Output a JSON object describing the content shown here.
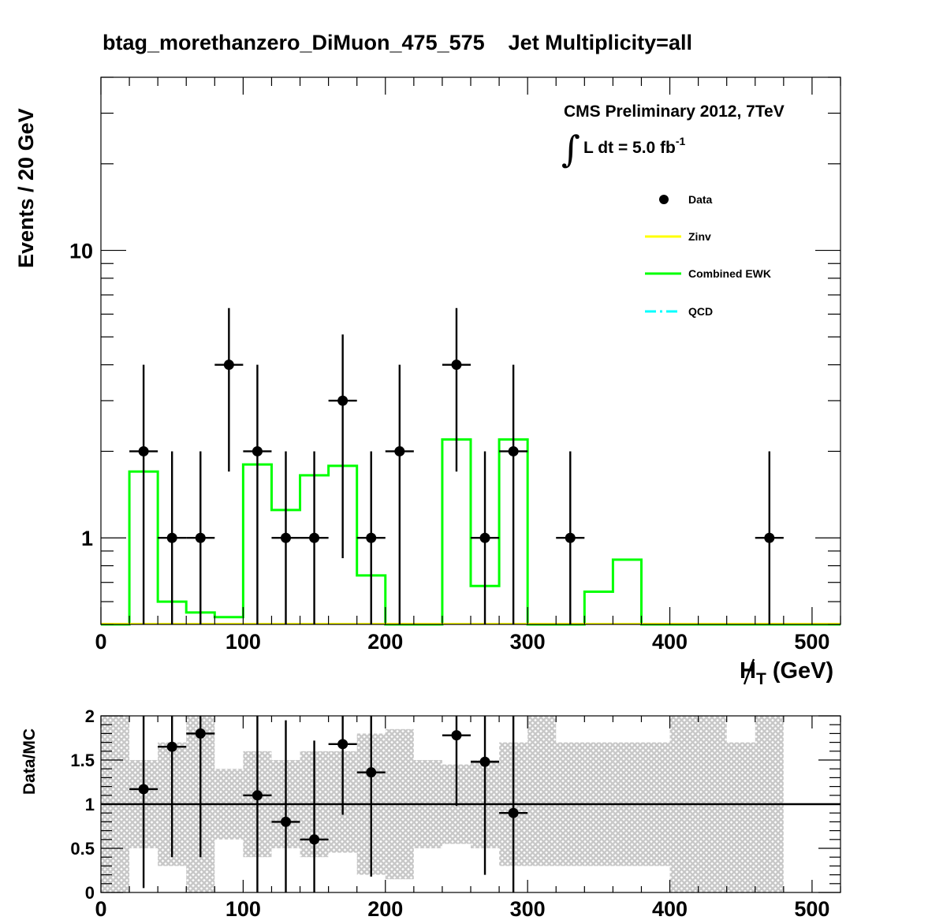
{
  "chart_data": [
    {
      "type": "histogram",
      "panel": "main",
      "title": "btag_morethanzero_DiMuon_475_575    Jet Multiplicity=all",
      "ylabel": "Events / 20 GeV",
      "xlabel_main": "H",
      "xlabel_sub": "T",
      "xlabel_unit": " (GeV)",
      "yscale": "log",
      "xlim": [
        0,
        520
      ],
      "ylim": [
        0.5,
        40
      ],
      "x_ticks": [
        0,
        100,
        200,
        300,
        400,
        500
      ],
      "x_tick_labels": [
        "0",
        "100",
        "200",
        "300",
        "400",
        "500"
      ],
      "y_tick_labels": [
        {
          "value": 1,
          "label": "1"
        },
        {
          "value": 10,
          "label": "10"
        }
      ],
      "annotations": {
        "cms": "CMS Preliminary 2012, 7TeV",
        "integral": "∫",
        "lumi": "L dt = 5.0 fb",
        "lumi_exp": "-1"
      },
      "legend": {
        "placement": "top-right",
        "entries": [
          {
            "label": "Data",
            "style": "marker",
            "color": "#000000"
          },
          {
            "label": "Zinv",
            "style": "line",
            "color": "#ffff00"
          },
          {
            "label": "Combined EWK",
            "style": "line",
            "color": "#00ff00"
          },
          {
            "label": "QCD",
            "style": "dashdot",
            "color": "#00ffff"
          }
        ]
      },
      "series": [
        {
          "name": "Combined EWK",
          "color": "#00ff00",
          "bin_edges": [
            0,
            20,
            40,
            60,
            80,
            100,
            120,
            140,
            160,
            180,
            200,
            220,
            240,
            260,
            280,
            300,
            320,
            340,
            360,
            380,
            400,
            420,
            440,
            460,
            480,
            500,
            520
          ],
          "values": [
            0,
            1.7,
            0.6,
            0.55,
            0.53,
            1.8,
            1.25,
            1.65,
            1.78,
            0.74,
            0,
            0,
            2.2,
            0.68,
            2.2,
            0,
            0,
            0.65,
            0.84,
            0,
            0,
            0,
            0,
            0,
            0,
            0
          ]
        },
        {
          "name": "Data",
          "color": "#000000",
          "points": [
            {
              "x": 30,
              "y": 2,
              "ylo": 0.5,
              "yhi": 4.0
            },
            {
              "x": 50,
              "y": 1,
              "ylo": 0.5,
              "yhi": 2.0
            },
            {
              "x": 70,
              "y": 1,
              "ylo": 0.5,
              "yhi": 2.0
            },
            {
              "x": 90,
              "y": 4,
              "ylo": 1.7,
              "yhi": 6.3
            },
            {
              "x": 110,
              "y": 2,
              "ylo": 0.5,
              "yhi": 4.0
            },
            {
              "x": 130,
              "y": 1,
              "ylo": 0.5,
              "yhi": 2.0
            },
            {
              "x": 150,
              "y": 1,
              "ylo": 0.5,
              "yhi": 2.0
            },
            {
              "x": 170,
              "y": 3,
              "ylo": 0.85,
              "yhi": 5.1
            },
            {
              "x": 190,
              "y": 1,
              "ylo": 0.5,
              "yhi": 2.0
            },
            {
              "x": 210,
              "y": 2,
              "ylo": 0.5,
              "yhi": 4.0
            },
            {
              "x": 250,
              "y": 4,
              "ylo": 1.7,
              "yhi": 6.3
            },
            {
              "x": 270,
              "y": 1,
              "ylo": 0.5,
              "yhi": 2.0
            },
            {
              "x": 290,
              "y": 2,
              "ylo": 0.5,
              "yhi": 4.0
            },
            {
              "x": 330,
              "y": 1,
              "ylo": 0.5,
              "yhi": 2.0
            },
            {
              "x": 470,
              "y": 1,
              "ylo": 0.5,
              "yhi": 2.0
            }
          ]
        },
        {
          "name": "Zinv",
          "color": "#ffff00",
          "values": []
        }
      ]
    },
    {
      "type": "ratio",
      "panel": "ratio",
      "ylabel": "Data/MC",
      "xlim": [
        0,
        520
      ],
      "ylim": [
        0,
        2
      ],
      "x_ticks": [
        0,
        100,
        200,
        300,
        400,
        500
      ],
      "x_tick_labels": [
        "0",
        "100",
        "200",
        "300",
        "400",
        "500"
      ],
      "y_ticks": [
        0,
        0.5,
        1,
        1.5,
        2
      ],
      "y_tick_labels": [
        "0",
        "0.5",
        "1",
        "1.5",
        "2"
      ],
      "reference_line": 1,
      "uncertainty_band": {
        "color": "#c8c8c8",
        "bin_edges": [
          0,
          20,
          40,
          60,
          80,
          100,
          120,
          140,
          160,
          180,
          200,
          220,
          240,
          260,
          280,
          300,
          320,
          340,
          360,
          380,
          400,
          420,
          440,
          460,
          480
        ],
        "lo": [
          0.0,
          0.5,
          0.3,
          0.0,
          0.6,
          0.4,
          0.5,
          0.4,
          0.45,
          0.2,
          0.15,
          0.5,
          0.55,
          0.5,
          0.3,
          0.3,
          0.3,
          0.3,
          0.3,
          0.3,
          0.0,
          0.0,
          0.0,
          0.0
        ],
        "hi": [
          2.0,
          1.5,
          1.7,
          2.0,
          1.4,
          1.6,
          1.5,
          1.6,
          1.6,
          1.8,
          1.85,
          1.5,
          1.45,
          1.5,
          1.7,
          2.0,
          1.7,
          1.7,
          1.7,
          1.7,
          2.0,
          2.0,
          1.7,
          2.0
        ]
      },
      "points": [
        {
          "x": 30,
          "y": 1.17,
          "ylo": 0.05,
          "yhi": 2.0
        },
        {
          "x": 50,
          "y": 1.65,
          "ylo": 0.4,
          "yhi": 2.0
        },
        {
          "x": 70,
          "y": 1.8,
          "ylo": 0.4,
          "yhi": 2.0
        },
        {
          "x": 110,
          "y": 1.1,
          "ylo": 0.0,
          "yhi": 2.0
        },
        {
          "x": 130,
          "y": 0.8,
          "ylo": 0.0,
          "yhi": 1.95
        },
        {
          "x": 150,
          "y": 0.6,
          "ylo": 0.0,
          "yhi": 1.72
        },
        {
          "x": 170,
          "y": 1.68,
          "ylo": 0.88,
          "yhi": 2.0
        },
        {
          "x": 190,
          "y": 1.36,
          "ylo": 0.18,
          "yhi": 2.0
        },
        {
          "x": 250,
          "y": 1.78,
          "ylo": 0.98,
          "yhi": 2.0
        },
        {
          "x": 270,
          "y": 1.48,
          "ylo": 0.2,
          "yhi": 2.0
        },
        {
          "x": 290,
          "y": 0.9,
          "ylo": 0.0,
          "yhi": 2.0
        }
      ]
    }
  ]
}
